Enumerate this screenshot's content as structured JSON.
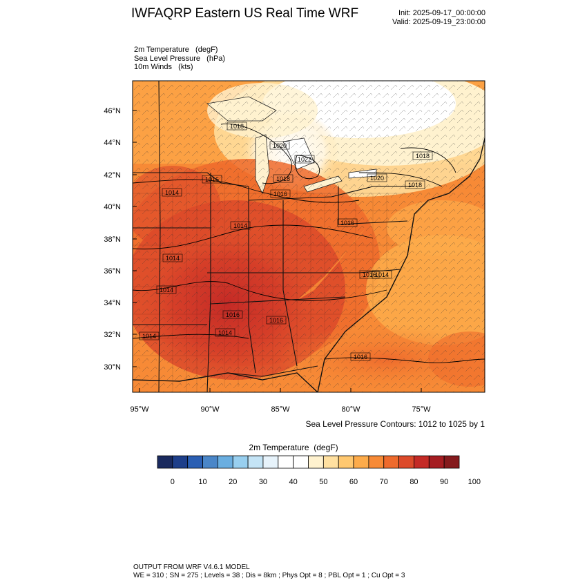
{
  "header": {
    "title": "IWFAQRP Eastern US Real Time WRF",
    "init": "Init: 2025-09-17_00:00:00",
    "valid": "Valid: 2025-09-19_23:00:00"
  },
  "fields": [
    "2m Temperature   (degF)",
    "Sea Level Pressure   (hPa)",
    "10m Winds   (kts)"
  ],
  "map": {
    "lat_ticks": [
      "46°N",
      "44°N",
      "42°N",
      "40°N",
      "38°N",
      "36°N",
      "34°N",
      "32°N",
      "30°N"
    ],
    "lon_ticks": [
      "95°W",
      "90°W",
      "85°W",
      "80°W",
      "75°W"
    ],
    "slp_labels": [
      "1018",
      "1020",
      "1022",
      "1018",
      "1020",
      "1018",
      "1018",
      "1014",
      "1016",
      "1016",
      "1014",
      "1014",
      "1014",
      "1016",
      "1014",
      "1014",
      "1016",
      "1016",
      "1014",
      "1016",
      "1016"
    ],
    "contour_note": "Sea Level Pressure Contours: 1012 to 1025 by 1"
  },
  "colorbar": {
    "title": "2m Temperature  (degF)",
    "colors": [
      "#1a2a5e",
      "#1e3f8a",
      "#2b5fb3",
      "#4a86c8",
      "#6aaee0",
      "#98cfef",
      "#c4e4f6",
      "#e7f3fb",
      "#ffffff",
      "#ffffff",
      "#fff2cf",
      "#ffe0a0",
      "#ffc870",
      "#fdab4a",
      "#f78a36",
      "#ee6a2c",
      "#dc4a2a",
      "#c42a26",
      "#a51d22",
      "#851a1d"
    ],
    "labels": [
      "0",
      "10",
      "20",
      "30",
      "40",
      "50",
      "60",
      "70",
      "80",
      "90",
      "100"
    ]
  },
  "footer": {
    "line1": "OUTPUT FROM WRF V4.6.1 MODEL",
    "line2": "WE = 310 ; SN = 275 ; Levels = 38 ; Dis = 8km ; Phys Opt = 8 ; PBL Opt = 1 ; Cu Opt = 3"
  }
}
